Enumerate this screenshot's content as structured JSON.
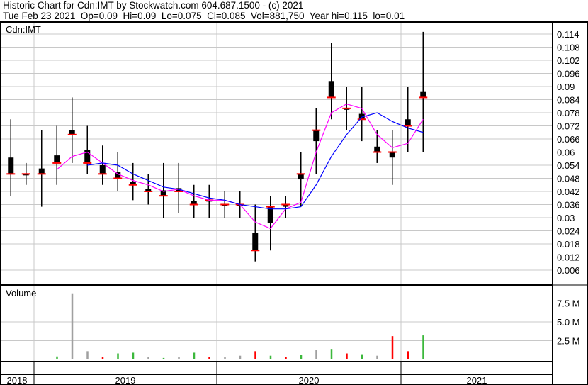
{
  "header": {
    "title": "Historic Chart for Cdn:IMT by Stockwatch.com 604.687.1500 - (c) 2021",
    "quote": "Tue Feb 23 2021  Op=0.09  Hi=0.09  Lo=0.075  Cl=0.085  Vol=881,750  Year hi=0.115  lo=0.01"
  },
  "chart_data": {
    "type": "line",
    "symbol_label": "Cdn:IMT",
    "volume_label": "Volume",
    "price_ticks": [
      "0.114",
      "0.108",
      "0.102",
      "0.096",
      "0.09",
      "0.084",
      "0.078",
      "0.072",
      "0.066",
      "0.06",
      "0.054",
      "0.048",
      "0.042",
      "0.036",
      "0.03",
      "0.024",
      "0.018",
      "0.012",
      "0.006"
    ],
    "ylim": [
      0.0,
      0.117
    ],
    "volume_ticks": [
      "7.5 M",
      "5.0 M",
      "2.5 M"
    ],
    "volume_ylim": [
      0,
      10
    ],
    "year_labels": [
      "2018",
      "2019",
      "2020",
      "2021"
    ],
    "grid": true,
    "colors": {
      "bar": "#000000",
      "close_tick": "#ff0000",
      "ma_short": "#ff00ff",
      "ma_long": "#0000ff",
      "vol_up": "#3cb83c",
      "vol_down": "#ff0000",
      "vol_flat": "#a0a0a0",
      "grid": "#c8c8c8"
    },
    "ohlc": [
      {
        "d": "2018-11",
        "h": 0.075,
        "l": 0.04,
        "c": 0.05
      },
      {
        "d": "2018-12",
        "h": 0.055,
        "l": 0.045,
        "c": 0.05
      },
      {
        "d": "2019-01",
        "h": 0.07,
        "l": 0.035,
        "c": 0.05
      },
      {
        "d": "2019-02",
        "h": 0.072,
        "l": 0.045,
        "c": 0.055
      },
      {
        "d": "2019-03",
        "h": 0.085,
        "l": 0.055,
        "c": 0.068
      },
      {
        "d": "2019-04",
        "h": 0.072,
        "l": 0.05,
        "c": 0.055
      },
      {
        "d": "2019-05",
        "h": 0.063,
        "l": 0.045,
        "c": 0.05
      },
      {
        "d": "2019-06",
        "h": 0.06,
        "l": 0.042,
        "c": 0.048
      },
      {
        "d": "2019-07",
        "h": 0.055,
        "l": 0.038,
        "c": 0.045
      },
      {
        "d": "2019-08",
        "h": 0.05,
        "l": 0.036,
        "c": 0.042
      },
      {
        "d": "2019-09",
        "h": 0.055,
        "l": 0.03,
        "c": 0.04
      },
      {
        "d": "2019-10",
        "h": 0.055,
        "l": 0.032,
        "c": 0.042
      },
      {
        "d": "2019-11",
        "h": 0.045,
        "l": 0.03,
        "c": 0.036
      },
      {
        "d": "2019-12",
        "h": 0.045,
        "l": 0.03,
        "c": 0.038
      },
      {
        "d": "2020-01",
        "h": 0.042,
        "l": 0.03,
        "c": 0.036
      },
      {
        "d": "2020-02",
        "h": 0.042,
        "l": 0.03,
        "c": 0.036
      },
      {
        "d": "2020-03",
        "h": 0.036,
        "l": 0.01,
        "c": 0.015
      },
      {
        "d": "2020-04",
        "h": 0.04,
        "l": 0.015,
        "c": 0.035
      },
      {
        "d": "2020-05",
        "h": 0.04,
        "l": 0.03,
        "c": 0.036
      },
      {
        "d": "2020-06",
        "h": 0.06,
        "l": 0.035,
        "c": 0.05
      },
      {
        "d": "2020-07",
        "h": 0.08,
        "l": 0.05,
        "c": 0.07
      },
      {
        "d": "2020-08",
        "h": 0.11,
        "l": 0.075,
        "c": 0.085
      },
      {
        "d": "2020-09",
        "h": 0.09,
        "l": 0.07,
        "c": 0.08
      },
      {
        "d": "2020-10",
        "h": 0.09,
        "l": 0.065,
        "c": 0.075
      },
      {
        "d": "2020-11",
        "h": 0.07,
        "l": 0.055,
        "c": 0.06
      },
      {
        "d": "2020-12",
        "h": 0.07,
        "l": 0.045,
        "c": 0.06
      },
      {
        "d": "2021-01",
        "h": 0.09,
        "l": 0.06,
        "c": 0.072
      },
      {
        "d": "2021-02",
        "h": 0.115,
        "l": 0.06,
        "c": 0.085
      }
    ],
    "ma_short": [
      {
        "d": "2019-02",
        "v": 0.052
      },
      {
        "d": "2019-03",
        "v": 0.058
      },
      {
        "d": "2019-04",
        "v": 0.06
      },
      {
        "d": "2019-05",
        "v": 0.055
      },
      {
        "d": "2019-06",
        "v": 0.05
      },
      {
        "d": "2019-07",
        "v": 0.047
      },
      {
        "d": "2019-08",
        "v": 0.045
      },
      {
        "d": "2019-09",
        "v": 0.042
      },
      {
        "d": "2019-10",
        "v": 0.043
      },
      {
        "d": "2019-11",
        "v": 0.04
      },
      {
        "d": "2019-12",
        "v": 0.038
      },
      {
        "d": "2020-01",
        "v": 0.038
      },
      {
        "d": "2020-02",
        "v": 0.036
      },
      {
        "d": "2020-03",
        "v": 0.028
      },
      {
        "d": "2020-04",
        "v": 0.025
      },
      {
        "d": "2020-05",
        "v": 0.034
      },
      {
        "d": "2020-06",
        "v": 0.037
      },
      {
        "d": "2020-07",
        "v": 0.06
      },
      {
        "d": "2020-08",
        "v": 0.078
      },
      {
        "d": "2020-09",
        "v": 0.082
      },
      {
        "d": "2020-10",
        "v": 0.08
      },
      {
        "d": "2020-11",
        "v": 0.068
      },
      {
        "d": "2020-12",
        "v": 0.062
      },
      {
        "d": "2021-01",
        "v": 0.064
      },
      {
        "d": "2021-02",
        "v": 0.075
      }
    ],
    "ma_long": [
      {
        "d": "2019-04",
        "v": 0.054
      },
      {
        "d": "2019-05",
        "v": 0.055
      },
      {
        "d": "2019-06",
        "v": 0.054
      },
      {
        "d": "2019-07",
        "v": 0.05
      },
      {
        "d": "2019-08",
        "v": 0.047
      },
      {
        "d": "2019-09",
        "v": 0.044
      },
      {
        "d": "2019-10",
        "v": 0.043
      },
      {
        "d": "2019-11",
        "v": 0.041
      },
      {
        "d": "2019-12",
        "v": 0.039
      },
      {
        "d": "2020-01",
        "v": 0.038
      },
      {
        "d": "2020-02",
        "v": 0.036
      },
      {
        "d": "2020-03",
        "v": 0.035
      },
      {
        "d": "2020-04",
        "v": 0.034
      },
      {
        "d": "2020-05",
        "v": 0.034
      },
      {
        "d": "2020-06",
        "v": 0.035
      },
      {
        "d": "2020-07",
        "v": 0.045
      },
      {
        "d": "2020-08",
        "v": 0.058
      },
      {
        "d": "2020-09",
        "v": 0.068
      },
      {
        "d": "2020-10",
        "v": 0.076
      },
      {
        "d": "2020-11",
        "v": 0.078
      },
      {
        "d": "2020-12",
        "v": 0.074
      },
      {
        "d": "2021-01",
        "v": 0.071
      },
      {
        "d": "2021-02",
        "v": 0.069
      }
    ],
    "volume_millions": [
      {
        "d": "2019-02",
        "v": 0.4,
        "dir": "up"
      },
      {
        "d": "2019-03",
        "v": 8.8,
        "dir": "flat"
      },
      {
        "d": "2019-04",
        "v": 1.1,
        "dir": "flat"
      },
      {
        "d": "2019-05",
        "v": 0.3,
        "dir": "down"
      },
      {
        "d": "2019-06",
        "v": 0.8,
        "dir": "up"
      },
      {
        "d": "2019-07",
        "v": 0.9,
        "dir": "up"
      },
      {
        "d": "2019-08",
        "v": 0.3,
        "dir": "flat"
      },
      {
        "d": "2019-09",
        "v": 0.2,
        "dir": "up"
      },
      {
        "d": "2019-10",
        "v": 0.3,
        "dir": "flat"
      },
      {
        "d": "2019-11",
        "v": 0.9,
        "dir": "up"
      },
      {
        "d": "2019-12",
        "v": 0.3,
        "dir": "down"
      },
      {
        "d": "2020-01",
        "v": 0.3,
        "dir": "flat"
      },
      {
        "d": "2020-02",
        "v": 0.5,
        "dir": "flat"
      },
      {
        "d": "2020-03",
        "v": 1.1,
        "dir": "down"
      },
      {
        "d": "2020-04",
        "v": 0.5,
        "dir": "up"
      },
      {
        "d": "2020-05",
        "v": 0.3,
        "dir": "down"
      },
      {
        "d": "2020-06",
        "v": 0.6,
        "dir": "up"
      },
      {
        "d": "2020-07",
        "v": 1.3,
        "dir": "flat"
      },
      {
        "d": "2020-08",
        "v": 1.4,
        "dir": "up"
      },
      {
        "d": "2020-09",
        "v": 0.8,
        "dir": "down"
      },
      {
        "d": "2020-10",
        "v": 0.7,
        "dir": "up"
      },
      {
        "d": "2020-11",
        "v": 0.5,
        "dir": "flat"
      },
      {
        "d": "2020-12",
        "v": 3.1,
        "dir": "down"
      },
      {
        "d": "2021-01",
        "v": 1.1,
        "dir": "down"
      },
      {
        "d": "2021-02",
        "v": 3.2,
        "dir": "up"
      }
    ]
  }
}
